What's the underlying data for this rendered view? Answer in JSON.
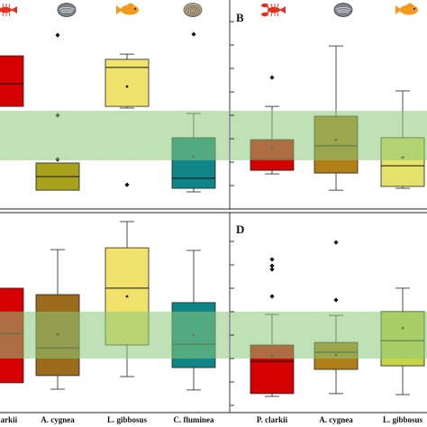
{
  "figure": {
    "band_color": "#8cc97a",
    "icon_colors": {
      "crayfish": "#e3321f",
      "mussel": "#7d8289",
      "fish": "#f39a1e",
      "clam": "#b9aa8e"
    }
  },
  "chart_data": [
    {
      "type": "box",
      "ylim": [
        0,
        10
      ],
      "band": [
        2.33,
        4.7
      ],
      "icons": [
        "crayfish",
        "mussel",
        "fish",
        "clam"
      ],
      "boxes": [
        {
          "min": 4.91,
          "q1": 4.91,
          "median": 5.99,
          "q3": 7.33,
          "max": 7.33,
          "color": "#d40000"
        },
        {
          "min": 0.9,
          "q1": 0.9,
          "median": 1.55,
          "q3": 2.2,
          "max": 2.2,
          "outliers": [
            8.32,
            4.48,
            2.37
          ],
          "color": "#a9a11c"
        },
        {
          "min": 4.83,
          "q1": 4.91,
          "median": 6.77,
          "q3": 7.16,
          "max": 7.41,
          "mean": 5.86,
          "outliers": [
            1.16
          ],
          "color": "#f0e26c"
        },
        {
          "min": 0.82,
          "q1": 0.99,
          "median": 1.47,
          "q3": 3.41,
          "max": 4.57,
          "mean": 2.5,
          "outliers": [
            8.36
          ],
          "color": "#0f8587"
        }
      ]
    },
    {
      "type": "box",
      "label": "B",
      "ylim": [
        0,
        10
      ],
      "band": [
        2.33,
        4.7
      ],
      "icons": [
        "crayfish",
        "mussel",
        "fish"
      ],
      "boxes": [
        {
          "min": 1.68,
          "q1": 1.85,
          "median": 2.37,
          "q3": 3.32,
          "max": 4.91,
          "mean": 2.93,
          "outliers": [
            6.29
          ],
          "color": "#d40000"
        },
        {
          "min": 0.9,
          "q1": 1.72,
          "median": 3.02,
          "q3": 4.44,
          "max": 7.8,
          "mean": 3.32,
          "color": "#b07f17"
        },
        {
          "min": 0.99,
          "q1": 1.08,
          "median": 2.07,
          "q3": 3.41,
          "max": 5.65,
          "mean": 2.46,
          "color": "#e4e36c"
        }
      ]
    },
    {
      "type": "box",
      "ylim": [
        0,
        10
      ],
      "band": [
        2.7,
        5.05
      ],
      "categories": [
        "P. clarkii",
        "A. cygnea",
        "L. gibbosus",
        "C. fluminea"
      ],
      "boxes": [
        {
          "min": 1.49,
          "q1": 1.49,
          "median": 3.96,
          "q3": 6.22,
          "max": 6.22,
          "color": "#d40000"
        },
        {
          "min": 1.17,
          "q1": 1.85,
          "median": 3.24,
          "q3": 5.9,
          "max": 8.15,
          "mean": 3.92,
          "color": "#9c6a1c"
        },
        {
          "min": 1.8,
          "q1": 3.38,
          "median": 6.22,
          "q3": 8.24,
          "max": 9.55,
          "mean": 5.81,
          "color": "#f0e26c"
        },
        {
          "min": 1.13,
          "q1": 2.25,
          "median": 3.42,
          "q3": 5.5,
          "max": 8.11,
          "mean": 3.87,
          "color": "#0f8587"
        }
      ]
    },
    {
      "type": "box",
      "label": "D",
      "ylim": [
        0,
        10
      ],
      "band": [
        2.7,
        5.05
      ],
      "categories": [
        "P. clarkii",
        "A. cygnea",
        "L. gibbosus"
      ],
      "boxes": [
        {
          "min": 0.81,
          "q1": 0.95,
          "median": 2.57,
          "q3": 3.38,
          "max": 4.91,
          "mean": 2.84,
          "outliers": [
            7.66,
            7.34,
            7.16,
            5.81
          ],
          "color": "#d40000"
        },
        {
          "min": 0.95,
          "q1": 2.16,
          "median": 3.02,
          "q3": 3.51,
          "max": 4.86,
          "mean": 2.88,
          "outliers": [
            8.51,
            5.63
          ],
          "color": "#b07f17"
        },
        {
          "min": 0.9,
          "q1": 2.34,
          "median": 3.6,
          "q3": 5.05,
          "max": 6.22,
          "mean": 4.23,
          "color": "#c6d44a"
        }
      ]
    }
  ]
}
